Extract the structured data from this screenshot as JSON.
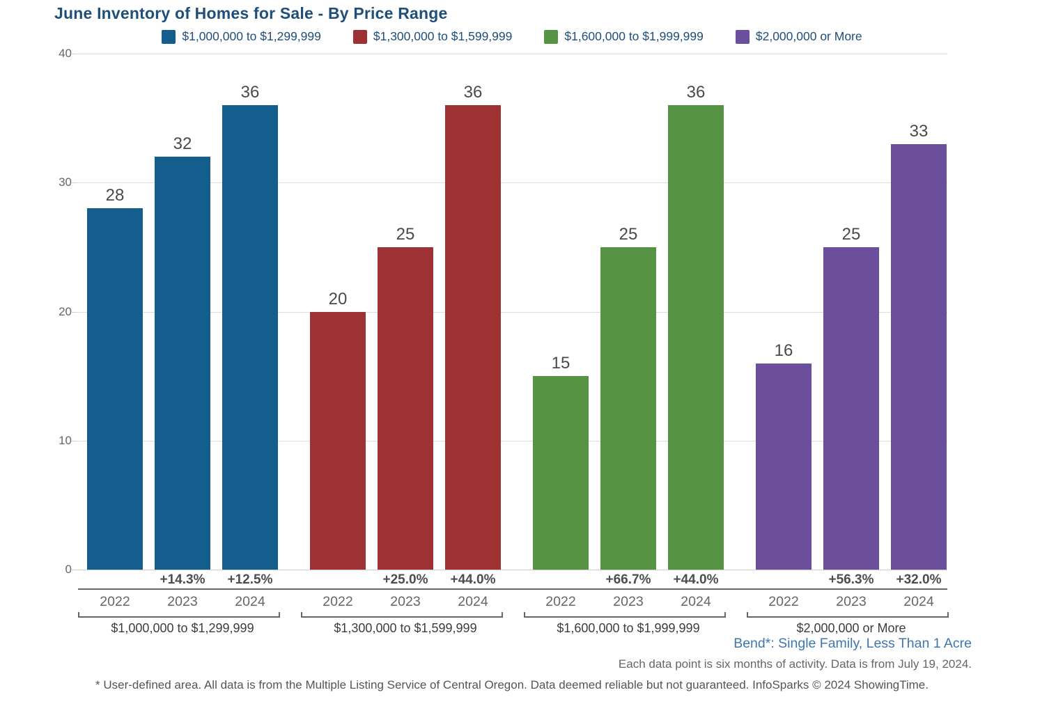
{
  "title": "June Inventory of Homes for Sale - By Price Range",
  "legend": {
    "items": [
      {
        "label": "$1,000,000 to $1,299,999",
        "color": "#135E8C"
      },
      {
        "label": "$1,300,000 to $1,599,999",
        "color": "#9E3132"
      },
      {
        "label": "$1,600,000 to $1,999,999",
        "color": "#569345"
      },
      {
        "label": "$2,000,000 or More",
        "color": "#6B4F9D"
      }
    ]
  },
  "chart_data": {
    "type": "bar",
    "title": "June Inventory of Homes for Sale - By Price Range",
    "xlabel": "",
    "ylabel": "",
    "ylim": [
      0,
      40
    ],
    "yticks": [
      0,
      10,
      20,
      30,
      40
    ],
    "grid": true,
    "legend_position": "top",
    "categories": [
      "2022",
      "2023",
      "2024"
    ],
    "groups": [
      {
        "name": "$1,000,000 to $1,299,999",
        "color": "#135E8C",
        "values": [
          28,
          32,
          36
        ],
        "pct_change": [
          "",
          "+14.3%",
          "+12.5%"
        ]
      },
      {
        "name": "$1,300,000 to $1,599,999",
        "color": "#9E3132",
        "values": [
          20,
          25,
          36
        ],
        "pct_change": [
          "",
          "+25.0%",
          "+44.0%"
        ]
      },
      {
        "name": "$1,600,000 to $1,999,999",
        "color": "#569345",
        "values": [
          15,
          25,
          36
        ],
        "pct_change": [
          "",
          "+66.7%",
          "+44.0%"
        ]
      },
      {
        "name": "$2,000,000 or More",
        "color": "#6B4F9D",
        "values": [
          16,
          25,
          33
        ],
        "pct_change": [
          "",
          "+56.3%",
          "+32.0%"
        ]
      }
    ]
  },
  "notes": {
    "area": "Bend*: Single Family, Less Than 1 Acre",
    "data_note": "Each data point is six months of activity. Data is from July 19, 2024.",
    "disclaimer": "* User-defined area. All data is from the Multiple Listing Service of Central Oregon. Data deemed reliable but not guaranteed. InfoSparks © 2024 ShowingTime."
  },
  "colors": {
    "title_text": "#1F4E79",
    "legend_text": "#1F4E79",
    "axis_text": "#666666",
    "value_label_text": "#4A4A4A",
    "pct_text": "#4D4D4D",
    "gridline": "#DDDDDD",
    "separator": "#666666",
    "area_note_text": "#3F76AE",
    "note_text": "#666666",
    "disclaimer_text": "#555555",
    "background": "#FFFFFF"
  }
}
